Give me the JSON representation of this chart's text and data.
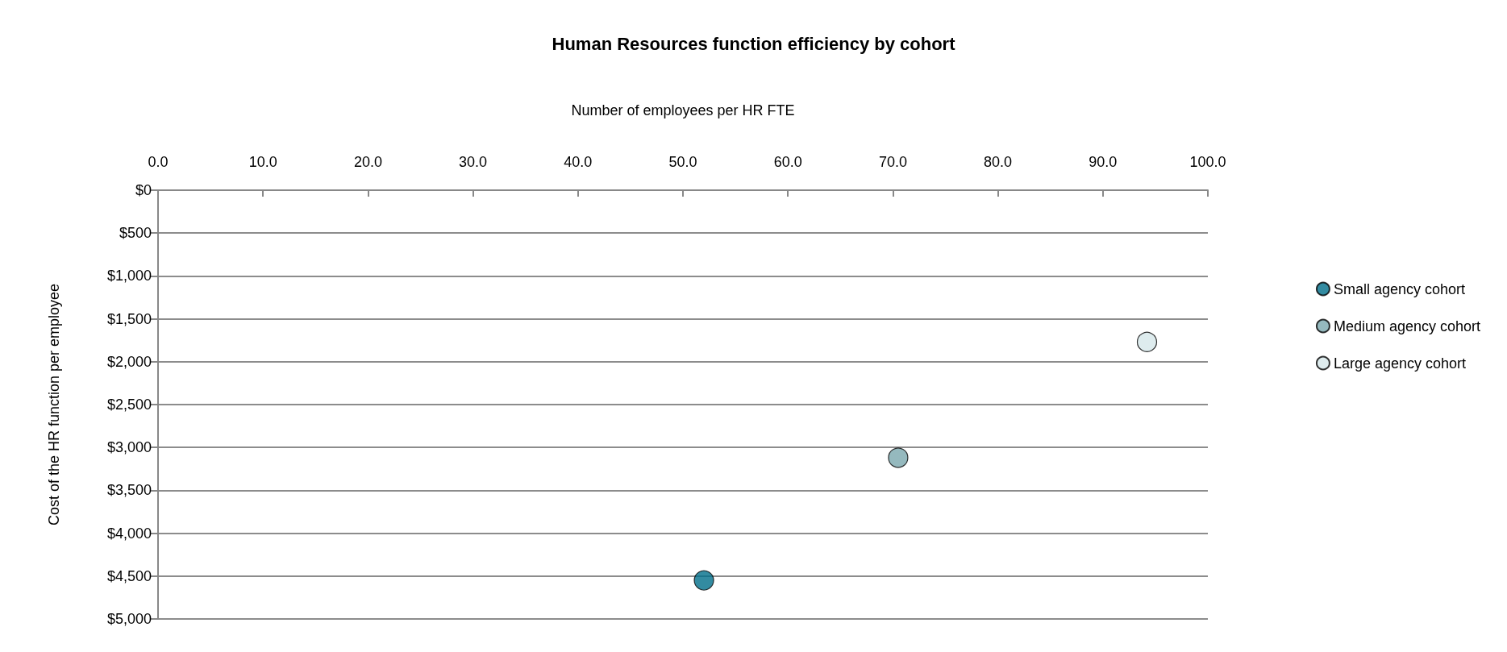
{
  "chart_data": {
    "type": "scatter",
    "title": "Human Resources function efficiency by cohort",
    "xlabel": "Number of employees per HR FTE",
    "ylabel": "Cost of the HR function per employee",
    "xlim": [
      0,
      100
    ],
    "xticks": [
      {
        "value": 0,
        "label": "0.0"
      },
      {
        "value": 10,
        "label": "10.0"
      },
      {
        "value": 20,
        "label": "20.0"
      },
      {
        "value": 30,
        "label": "30.0"
      },
      {
        "value": 40,
        "label": "40.0"
      },
      {
        "value": 50,
        "label": "50.0"
      },
      {
        "value": 60,
        "label": "60.0"
      },
      {
        "value": 70,
        "label": "70.0"
      },
      {
        "value": 80,
        "label": "80.0"
      },
      {
        "value": 90,
        "label": "90.0"
      },
      {
        "value": 100,
        "label": "100.0"
      }
    ],
    "ylim": [
      5000,
      0
    ],
    "yticks": [
      {
        "value": 0,
        "label": "$0"
      },
      {
        "value": 500,
        "label": "$500"
      },
      {
        "value": 1000,
        "label": "$1,000"
      },
      {
        "value": 1500,
        "label": "$1,500"
      },
      {
        "value": 2000,
        "label": "$2,000"
      },
      {
        "value": 2500,
        "label": "$2,500"
      },
      {
        "value": 3000,
        "label": "$3,000"
      },
      {
        "value": 3500,
        "label": "$3,500"
      },
      {
        "value": 4000,
        "label": "$4,000"
      },
      {
        "value": 4500,
        "label": "$4,500"
      },
      {
        "value": 5000,
        "label": "$5,000"
      }
    ],
    "series": [
      {
        "name": "Small agency cohort",
        "color": "#006e8a",
        "x": [
          52.0
        ],
        "values": [
          4550
        ]
      },
      {
        "name": "Medium agency cohort",
        "color": "#7ba7ae",
        "x": [
          70.5
        ],
        "values": [
          3120
        ]
      },
      {
        "name": "Large agency cohort",
        "color": "#d6e7ea",
        "x": [
          94.2
        ],
        "values": [
          1770
        ]
      }
    ],
    "grid": "y",
    "legend": "right",
    "marker": "circle"
  }
}
